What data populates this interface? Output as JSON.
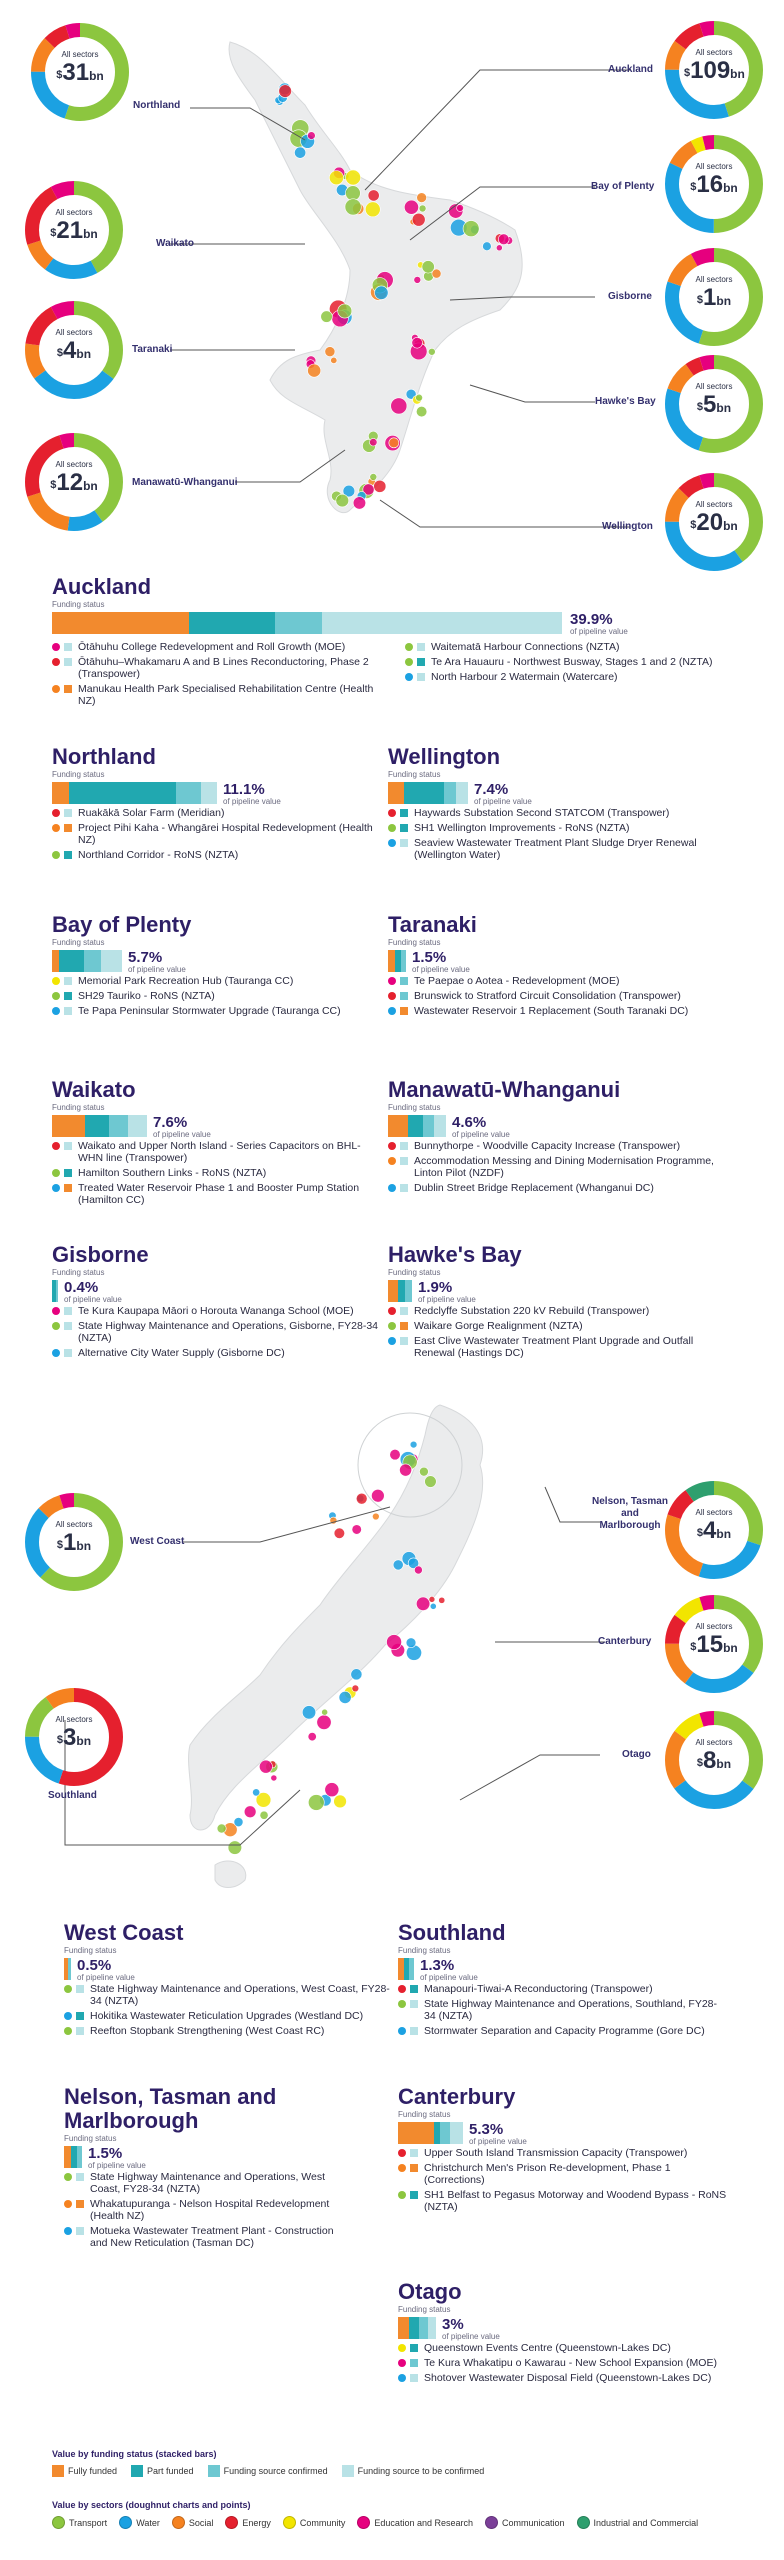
{
  "colors": {
    "fully_funded": "#f28a2e",
    "part_funded": "#21a8b0",
    "source_confirmed": "#6ec8d1",
    "source_to_confirm": "#b9e2e6",
    "transport": "#8cc63f",
    "water": "#1ba1e2",
    "social": "#f58220",
    "energy": "#e5202e",
    "community": "#f2e500",
    "education": "#e6007e",
    "communication": "#7b3f98",
    "industrial": "#2e9f6e"
  },
  "north_island": {
    "regions": [
      {
        "name": "Northland",
        "label": "All sectors",
        "prefix": "$",
        "value": "31",
        "unit": "bn"
      },
      {
        "name": "Waikato",
        "label": "All sectors",
        "prefix": "$",
        "value": "21",
        "unit": "bn"
      },
      {
        "name": "Taranaki",
        "label": "All sectors",
        "prefix": "$",
        "value": "4",
        "unit": "bn"
      },
      {
        "name": "Manawatū-Whanganui",
        "label": "All sectors",
        "prefix": "$",
        "value": "12",
        "unit": "bn"
      },
      {
        "name": "Auckland",
        "label": "All sectors",
        "prefix": "$",
        "value": "109",
        "unit": "bn"
      },
      {
        "name": "Bay of Plenty",
        "label": "All sectors",
        "prefix": "$",
        "value": "16",
        "unit": "bn"
      },
      {
        "name": "Gisborne",
        "label": "All sectors",
        "prefix": "$",
        "value": "1",
        "unit": "bn"
      },
      {
        "name": "Hawke's Bay",
        "label": "All sectors",
        "prefix": "$",
        "value": "5",
        "unit": "bn"
      },
      {
        "name": "Wellington",
        "label": "All sectors",
        "prefix": "$",
        "value": "20",
        "unit": "bn"
      }
    ]
  },
  "south_island": {
    "regions": [
      {
        "name": "West Coast",
        "label": "All sectors",
        "prefix": "$",
        "value": "1",
        "unit": "bn"
      },
      {
        "name": "Southland",
        "label": "All sectors",
        "prefix": "$",
        "value": "3",
        "unit": "bn"
      },
      {
        "name": "Nelson, Tasman and Marlborough",
        "label": "All sectors",
        "prefix": "$",
        "value": "4",
        "unit": "bn"
      },
      {
        "name": "Canterbury",
        "label": "All sectors",
        "prefix": "$",
        "value": "15",
        "unit": "bn"
      },
      {
        "name": "Otago",
        "label": "All sectors",
        "prefix": "$",
        "value": "8",
        "unit": "bn"
      }
    ]
  },
  "auckland": {
    "title": "Auckland",
    "funding_status_label": "Funding status",
    "pct": "39.9%",
    "pct_caption": "of pipeline value",
    "projects": [
      "Ōtāhuhu College Redevelopment and Roll Growth (MOE)",
      "Ōtāhuhu–Whakamaru A and B Lines Reconductoring, Phase 2 (Transpower)",
      "Manukau Health Park Specialised Rehabilitation Centre (Health NZ)",
      "Waitematā Harbour Connections (NZTA)",
      "Te Ara Hauauru - Northwest Busway, Stages 1 and 2 (NZTA)",
      "North Harbour 2 Watermain (Watercare)"
    ]
  },
  "northland": {
    "title": "Northland",
    "funding_status_label": "Funding status",
    "pct": "11.1%",
    "pct_caption": "of pipeline value",
    "projects": [
      "Ruakākā Solar Farm (Meridian)",
      "Project Pihi Kaha - Whangārei Hospital Redevelopment (Health NZ)",
      "Northland Corridor - RoNS (NZTA)"
    ]
  },
  "wellington": {
    "title": "Wellington",
    "funding_status_label": "Funding status",
    "pct": "7.4%",
    "pct_caption": "of pipeline value",
    "projects": [
      "Haywards Substation Second STATCOM (Transpower)",
      "SH1 Wellington Improvements - RoNS (NZTA)",
      "Seaview Wastewater Treatment Plant Sludge Dryer Renewal (Wellington Water)"
    ]
  },
  "bay_of_plenty": {
    "title": "Bay of Plenty",
    "funding_status_label": "Funding status",
    "pct": "5.7%",
    "pct_caption": "of pipeline value",
    "projects": [
      "Memorial Park Recreation Hub (Tauranga CC)",
      "SH29 Tauriko - RoNS (NZTA)",
      "Te Papa Peninsular Stormwater Upgrade (Tauranga CC)"
    ]
  },
  "taranaki": {
    "title": "Taranaki",
    "funding_status_label": "Funding status",
    "pct": "1.5%",
    "pct_caption": "of pipeline value",
    "projects": [
      "Te Paepae o Aotea - Redevelopment (MOE)",
      "Brunswick to Stratford Circuit Consolidation (Transpower)",
      "Wastewater Reservoir 1 Replacement (South Taranaki DC)"
    ]
  },
  "waikato": {
    "title": "Waikato",
    "funding_status_label": "Funding status",
    "pct": "7.6%",
    "pct_caption": "of pipeline value",
    "projects": [
      "Waikato and Upper North Island - Series Capacitors on BHL-WHN line (Transpower)",
      "Hamilton Southern Links - RoNS (NZTA)",
      "Treated Water Reservoir Phase 1 and Booster Pump Station (Hamilton CC)"
    ]
  },
  "manawatu": {
    "title": "Manawatū-Whanganui",
    "funding_status_label": "Funding status",
    "pct": "4.6%",
    "pct_caption": "of pipeline value",
    "projects": [
      "Bunnythorpe - Woodville Capacity Increase (Transpower)",
      "Accommodation Messing and Dining Modernisation Programme, Linton Pilot (NZDF)",
      "Dublin Street Bridge Replacement (Whanganui DC)"
    ]
  },
  "gisborne": {
    "title": "Gisborne",
    "funding_status_label": "Funding status",
    "pct": "0.4%",
    "pct_caption": "of pipeline value",
    "projects": [
      "Te Kura Kaupapa Māori o Horouta Wananga School (MOE)",
      "State Highway Maintenance and Operations, Gisborne, FY28-34 (NZTA)",
      "Alternative City Water Supply (Gisborne DC)"
    ]
  },
  "hawkes_bay": {
    "title": "Hawke's Bay",
    "funding_status_label": "Funding status",
    "pct": "1.9%",
    "pct_caption": "of pipeline value",
    "projects": [
      "Redclyffe Substation 220 kV Rebuild (Transpower)",
      "Waikare Gorge Realignment (NZTA)",
      "East Clive Wastewater Treatment Plant Upgrade and Outfall Renewal (Hastings DC)"
    ]
  },
  "west_coast": {
    "title": "West Coast",
    "funding_status_label": "Funding status",
    "pct": "0.5%",
    "pct_caption": "of pipeline value",
    "projects": [
      "State Highway Maintenance and Operations, West Coast, FY28-34 (NZTA)",
      "Hokitika Wastewater Reticulation Upgrades (Westland DC)",
      "Reefton Stopbank Strengthening (West Coast RC)"
    ]
  },
  "southland": {
    "title": "Southland",
    "funding_status_label": "Funding status",
    "pct": "1.3%",
    "pct_caption": "of pipeline value",
    "projects": [
      "Manapouri-Tiwai-A Reconductoring (Transpower)",
      "State Highway Maintenance and Operations, Southland, FY28-34 (NZTA)",
      "Stormwater Separation and Capacity Programme (Gore DC)"
    ]
  },
  "nelson": {
    "title": "Nelson, Tasman and Marlborough",
    "funding_status_label": "Funding status",
    "pct": "1.5%",
    "pct_caption": "of pipeline value",
    "projects": [
      "State Highway Maintenance and Operations, West Coast, FY28-34 (NZTA)",
      "Whakatupuranga - Nelson Hospital Redevelopment (Health NZ)",
      "Motueka Wastewater Treatment Plant - Construction and New Reticulation (Tasman DC)"
    ]
  },
  "canterbury": {
    "title": "Canterbury",
    "funding_status_label": "Funding status",
    "pct": "5.3%",
    "pct_caption": "of pipeline value",
    "projects": [
      "Upper South Island Transmission Capacity (Transpower)",
      "Christchurch Men's Prison Re-development, Phase 1 (Corrections)",
      "SH1 Belfast to Pegasus Motorway and Woodend Bypass - RoNS (NZTA)"
    ]
  },
  "otago": {
    "title": "Otago",
    "funding_status_label": "Funding status",
    "pct": "3%",
    "pct_caption": "of pipeline value",
    "projects": [
      "Queenstown Events Centre (Queenstown-Lakes DC)",
      "Te Kura Whakatipu o Kawarau - New School Expansion (MOE)",
      "Shotover Wastewater Disposal Field (Queenstown-Lakes DC)"
    ]
  },
  "legend": {
    "funding_title": "Value by funding status (stacked bars)",
    "funding": [
      "Fully funded",
      "Part funded",
      "Funding source confirmed",
      "Funding source to be confirmed"
    ],
    "sectors_title": "Value by sectors (doughnut charts and points)",
    "sectors": [
      "Transport",
      "Water",
      "Social",
      "Energy",
      "Community",
      "Education and Research",
      "Communication",
      "Industrial and Commercial"
    ]
  }
}
